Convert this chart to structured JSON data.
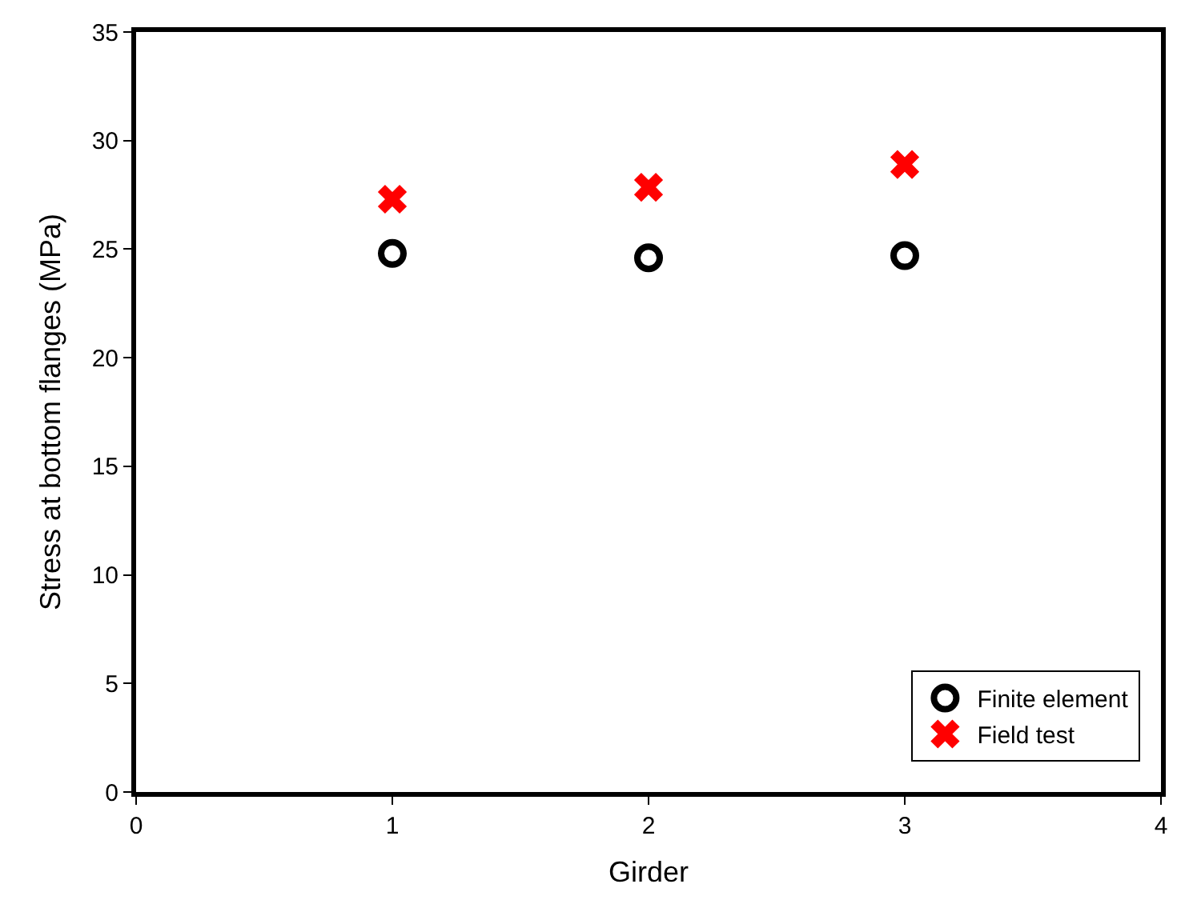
{
  "chart_data": {
    "type": "scatter",
    "xlabel": "Girder",
    "ylabel": "Stress at bottom flanges (MPa)",
    "x": [
      1,
      2,
      3
    ],
    "series": [
      {
        "name": "Finite element",
        "color": "#000000",
        "marker": "circle",
        "values": [
          24.8,
          24.6,
          24.7
        ]
      },
      {
        "name": "Field test",
        "color": "#ff0000",
        "marker": "cross",
        "values": [
          27.3,
          27.85,
          28.9
        ]
      }
    ],
    "xlim": [
      0,
      4
    ],
    "xticks": [
      0,
      1,
      2,
      3,
      4
    ],
    "ylim": [
      0,
      35
    ],
    "yticks": [
      0,
      5,
      10,
      15,
      20,
      25,
      30,
      35
    ],
    "legend": "bottom right"
  }
}
